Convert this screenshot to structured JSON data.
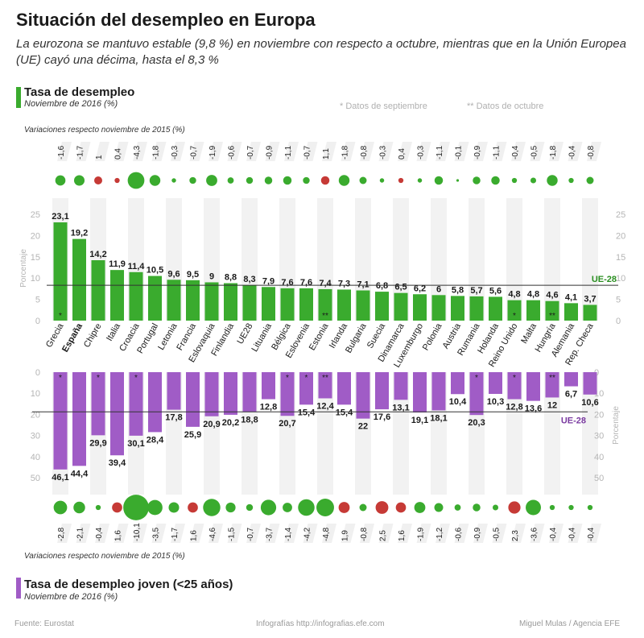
{
  "title": "Situación del desempleo en Europa",
  "subtitle": "La eurozona se mantuvo estable (9,8 %) en noviembre con respecto a octubre, mientras que en la Unión Europea (UE) cayó una décima, hasta el 8,3 %",
  "colors": {
    "green": "#3aab2e",
    "purple": "#a05cc6",
    "red": "#c63a36",
    "stripe": "#f2f2f2",
    "axis": "#c8c8c8"
  },
  "top_section": {
    "title": "Tasa de desempleo",
    "subtitle": "Noviembre de 2016 (%)"
  },
  "bottom_section": {
    "title": "Tasa de desempleo joven (<25 años)",
    "subtitle": "Noviembre de 2016 (%)"
  },
  "notes": {
    "sept": "* Datos de septiembre",
    "oct": "** Datos de octubre"
  },
  "variation_label": "Variaciones respecto noviembre de 2015 (%)",
  "footer": {
    "source": "Fuente: Eurostat",
    "infografias": "Infografías http://infografias.efe.com",
    "author": "Miguel Mulas / Agencia EFE"
  },
  "chart_data": [
    {
      "type": "bar",
      "title": "Tasa de desempleo",
      "ylabel": "Porcentaje",
      "ylim": [
        0,
        25
      ],
      "yticks": [
        0,
        5,
        10,
        15,
        20,
        25
      ],
      "reference": {
        "label": "UE-28",
        "value": 8.3
      },
      "categories": [
        "Grecia",
        "España",
        "Chipre",
        "Italia",
        "Croacia",
        "Portugal",
        "Letonia",
        "Francia",
        "Eslovaquia",
        "Finlandia",
        "UE28",
        "Lituania",
        "Bélgica",
        "Eslovenia",
        "Estonia",
        "Irlanda",
        "Bulgaria",
        "Suecia",
        "Dinamarca",
        "Luxemburgo",
        "Polonia",
        "Austria",
        "Rumania",
        "Holanda",
        "Reino Unido",
        "Malta",
        "Hungría",
        "Alemania",
        "Rep. Checa"
      ],
      "values": [
        23.1,
        19.2,
        14.2,
        11.9,
        11.4,
        10.5,
        9.6,
        9.5,
        9,
        8.8,
        8.3,
        7.9,
        7.6,
        7.6,
        7.4,
        7.3,
        7.1,
        6.8,
        6.5,
        6.2,
        6,
        5.8,
        5.7,
        5.6,
        4.8,
        4.8,
        4.6,
        4.1,
        3.7
      ],
      "value_labels": [
        "23,1",
        "19,2",
        "14,2",
        "11,9",
        "11,4",
        "10,5",
        "9,6",
        "9,5",
        "9",
        "8,8",
        "8,3",
        "7,9",
        "7,6",
        "7,6",
        "7,4",
        "7,3",
        "7,1",
        "6,8",
        "6,5",
        "6,2",
        "6",
        "5,8",
        "5,7",
        "5,6",
        "4,8",
        "4,8",
        "4,6",
        "4,1",
        "3,7"
      ],
      "markers": [
        "*",
        "",
        "",
        "",
        "",
        "",
        "",
        "",
        "",
        "",
        "",
        "",
        "",
        "",
        "**",
        "",
        "",
        "",
        "",
        "",
        "",
        "",
        "",
        "",
        "*",
        "",
        "**",
        "",
        ""
      ],
      "variation": [
        -1.6,
        -1.7,
        1,
        0.4,
        -4.3,
        -1.8,
        -0.3,
        -0.7,
        -1.9,
        -0.6,
        -0.7,
        -0.9,
        -1.1,
        -0.7,
        1.1,
        -1.8,
        -0.8,
        -0.3,
        0.4,
        -0.3,
        -1.1,
        -0.1,
        -0.9,
        -1.1,
        -0.4,
        -0.5,
        -1.8,
        -0.4,
        -0.8
      ],
      "variation_labels": [
        "-1,6",
        "-1,7",
        "1",
        "0,4",
        "-4,3",
        "-1,8",
        "-0,3",
        "-0,7",
        "-1,9",
        "-0,6",
        "-0,7",
        "-0,9",
        "-1,1",
        "-0,7",
        "1,1",
        "-1,8",
        "-0,8",
        "-0,3",
        "0,4",
        "-0,3",
        "-1,1",
        "-0,1",
        "-0,9",
        "-1,1",
        "-0,4",
        "-0,5",
        "-1,8",
        "-0,4",
        "-0,8"
      ]
    },
    {
      "type": "bar",
      "title": "Tasa de desempleo joven (<25 años)",
      "ylabel": "Porcentaje",
      "ylim": [
        0,
        50
      ],
      "yticks": [
        0,
        10,
        20,
        30,
        40,
        50
      ],
      "reference": {
        "label": "UE-28",
        "value": 18.8
      },
      "categories": [
        "Grecia",
        "España",
        "Chipre",
        "Italia",
        "Croacia",
        "Portugal",
        "Letonia",
        "Francia",
        "Eslovaquia",
        "Finlandia",
        "UE28",
        "Lituania",
        "Bélgica",
        "Eslovenia",
        "Estonia",
        "Irlanda",
        "Bulgaria",
        "Suecia",
        "Dinamarca",
        "Luxemburgo",
        "Polonia",
        "Austria",
        "Rumania",
        "Holanda",
        "Reino Unido",
        "Malta",
        "Hungría",
        "Alemania",
        "Rep. Checa"
      ],
      "values": [
        46.1,
        44.4,
        29.9,
        39.4,
        30.1,
        28.4,
        17.8,
        25.9,
        20.9,
        20.2,
        18.8,
        12.8,
        20.7,
        15.4,
        12.4,
        15.4,
        22,
        17.6,
        13.1,
        19.1,
        18.1,
        10.4,
        20.3,
        10.3,
        12.8,
        13.6,
        12,
        6.7,
        10.6
      ],
      "value_labels": [
        "46,1",
        "44,4",
        "29,9",
        "39,4",
        "30,1",
        "28,4",
        "17,8",
        "25,9",
        "20,9",
        "20,2",
        "18,8",
        "12,8",
        "20,7",
        "15,4",
        "12,4",
        "15,4",
        "22",
        "17,6",
        "13,1",
        "19,1",
        "18,1",
        "10,4",
        "20,3",
        "10,3",
        "12,8",
        "13,6",
        "12",
        "6,7",
        "10,6"
      ],
      "markers": [
        "*",
        "",
        "*",
        "",
        "*",
        "",
        "",
        "",
        "",
        "",
        "",
        "",
        "*",
        "*",
        "**",
        "",
        "",
        "",
        "",
        "",
        "",
        "",
        "*",
        "",
        "*",
        "",
        "**",
        "",
        ""
      ],
      "variation": [
        -2.8,
        -2.1,
        -0.4,
        1.6,
        -10.1,
        -3.5,
        -1.7,
        1.6,
        -4.6,
        -1.5,
        -0.7,
        -3.7,
        -1.4,
        -4.2,
        -4.8,
        1.9,
        -0.8,
        2.5,
        1.6,
        -1.9,
        -1.2,
        -0.6,
        -0.9,
        -0.5,
        2.3,
        -3.6,
        -0.4,
        -0.4,
        -0.4
      ],
      "variation_labels": [
        "-2,8",
        "-2,1",
        "-0,4",
        "1,6",
        "-10,1",
        "-3,5",
        "-1,7",
        "1,6",
        "-4,6",
        "-1,5",
        "-0,7",
        "-3,7",
        "-1,4",
        "-4,2",
        "-4,8",
        "1,9",
        "-0,8",
        "2,5",
        "1,6",
        "-1,9",
        "-1,2",
        "-0,6",
        "-0,9",
        "-0,5",
        "2,3",
        "-3,6",
        "-0,4",
        "-0,4",
        "-0,4"
      ]
    }
  ]
}
